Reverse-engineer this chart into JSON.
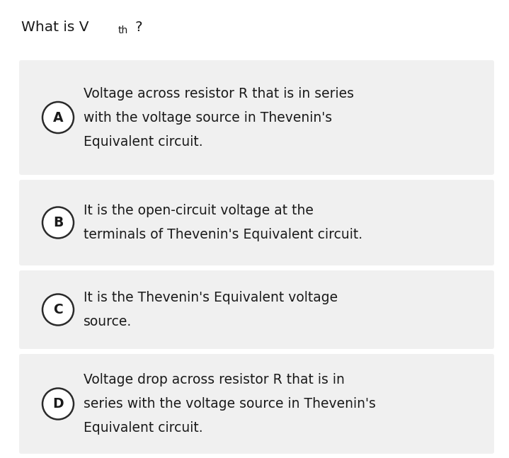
{
  "background_color": "#ffffff",
  "option_bg_color": "#f0f0f0",
  "circle_edge_color": "#2a2a2a",
  "text_color": "#1a1a1a",
  "title_fontsize": 14.5,
  "label_fontsize": 13.5,
  "text_fontsize": 13.5,
  "sub_fontsize": 10,
  "options": [
    {
      "label": "A",
      "text_lines": [
        "Voltage across resistor R that is in series",
        "with the voltage source in Thevenin's",
        "Equivalent circuit."
      ]
    },
    {
      "label": "B",
      "text_lines": [
        "It is the open-circuit voltage at the",
        "terminals of Thevenin's Equivalent circuit."
      ]
    },
    {
      "label": "C",
      "text_lines": [
        "It is the Thevenin's Equivalent voltage",
        "source."
      ]
    },
    {
      "label": "D",
      "text_lines": [
        "Voltage drop across resistor R that is in",
        "series with the voltage source in Thevenin's",
        "Equivalent circuit."
      ]
    }
  ]
}
